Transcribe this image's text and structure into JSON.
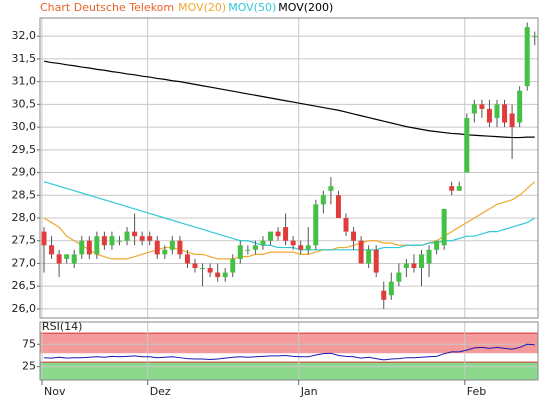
{
  "chart_data": [
    {
      "type": "candlestick",
      "title": "Chart Deutsche Telekom",
      "categories": [
        "Nov",
        null,
        null,
        null,
        null,
        null,
        null,
        null,
        null,
        null,
        null,
        null,
        null,
        null,
        "Dez",
        null,
        null,
        null,
        null,
        null,
        null,
        null,
        null,
        null,
        null,
        null,
        null,
        null,
        null,
        null,
        null,
        null,
        null,
        null,
        "Jan",
        null,
        null,
        null,
        null,
        null,
        null,
        null,
        null,
        null,
        null,
        null,
        null,
        null,
        null,
        null,
        null,
        null,
        null,
        null,
        null,
        null,
        "Feb",
        null,
        null,
        null,
        null,
        null,
        null,
        null,
        null,
        null
      ],
      "open": [
        27.7,
        27.4,
        27.2,
        27.1,
        27.0,
        27.2,
        27.5,
        27.2,
        27.6,
        27.4,
        27.5,
        27.5,
        27.7,
        27.6,
        27.6,
        27.5,
        27.2,
        27.3,
        27.5,
        27.2,
        27.0,
        26.9,
        26.9,
        26.8,
        26.7,
        26.8,
        27.1,
        27.3,
        27.3,
        27.4,
        27.5,
        27.7,
        27.8,
        27.5,
        27.4,
        27.3,
        27.4,
        28.3,
        28.6,
        28.5,
        28.0,
        27.7,
        27.5,
        27.0,
        27.3,
        26.4,
        26.3,
        26.6,
        26.9,
        27.0,
        26.9,
        27.0,
        27.3,
        27.4,
        28.7,
        28.6,
        29.0,
        30.3,
        30.5,
        30.4,
        30.2,
        30.5,
        30.3,
        30.1,
        30.9,
        32.0
      ],
      "high": [
        27.8,
        27.6,
        27.3,
        27.2,
        27.3,
        27.6,
        27.6,
        27.7,
        27.7,
        27.7,
        27.6,
        27.8,
        28.1,
        27.7,
        27.7,
        27.6,
        27.4,
        27.6,
        27.6,
        27.3,
        27.1,
        27.0,
        27.0,
        27.0,
        26.9,
        27.2,
        27.5,
        27.4,
        27.5,
        27.6,
        27.7,
        27.8,
        28.1,
        27.6,
        27.5,
        27.8,
        28.4,
        28.6,
        28.9,
        28.6,
        28.1,
        27.8,
        27.6,
        27.4,
        27.4,
        26.6,
        26.8,
        27.0,
        27.1,
        27.2,
        27.3,
        27.4,
        27.5,
        28.2,
        28.8,
        28.8,
        30.3,
        30.6,
        30.6,
        30.6,
        30.6,
        30.6,
        30.5,
        30.9,
        32.3,
        32.1
      ],
      "low": [
        26.8,
        27.1,
        26.7,
        27.0,
        26.9,
        27.1,
        27.1,
        27.1,
        27.3,
        27.3,
        27.4,
        27.4,
        27.4,
        27.4,
        27.4,
        27.1,
        27.1,
        27.2,
        27.1,
        26.9,
        26.8,
        26.5,
        26.7,
        26.6,
        26.6,
        26.7,
        27.0,
        27.2,
        27.2,
        27.3,
        27.4,
        27.5,
        27.4,
        27.3,
        27.2,
        27.2,
        27.3,
        28.1,
        28.3,
        28.0,
        27.6,
        27.3,
        27.0,
        26.9,
        26.7,
        26.0,
        26.2,
        26.5,
        26.7,
        26.8,
        26.5,
        26.7,
        27.2,
        27.3,
        28.5,
        28.6,
        29.0,
        30.1,
        30.2,
        30.0,
        30.0,
        30.0,
        29.3,
        30.0,
        30.8,
        31.8
      ],
      "close": [
        27.4,
        27.2,
        27.0,
        27.2,
        27.2,
        27.5,
        27.2,
        27.6,
        27.4,
        27.6,
        27.5,
        27.7,
        27.6,
        27.5,
        27.5,
        27.2,
        27.3,
        27.5,
        27.2,
        27.0,
        26.9,
        26.9,
        26.8,
        26.7,
        26.8,
        27.1,
        27.4,
        27.3,
        27.4,
        27.5,
        27.7,
        27.6,
        27.5,
        27.4,
        27.3,
        27.4,
        28.3,
        28.5,
        28.7,
        28.0,
        27.7,
        27.5,
        27.0,
        27.3,
        26.8,
        26.2,
        26.6,
        26.8,
        27.0,
        26.9,
        27.2,
        27.3,
        27.5,
        28.2,
        28.6,
        28.7,
        30.2,
        30.5,
        30.4,
        30.1,
        30.5,
        30.1,
        30.0,
        30.8,
        32.2,
        32.0
      ],
      "up_color": "#44c044",
      "down_color": "#e03c3c",
      "series": [
        {
          "name": "MOV(20)",
          "color": "#f0a830",
          "values": [
            28.0,
            27.9,
            27.8,
            27.6,
            27.5,
            27.4,
            27.3,
            27.2,
            27.15,
            27.1,
            27.1,
            27.1,
            27.15,
            27.2,
            27.25,
            27.3,
            27.35,
            27.35,
            27.3,
            27.25,
            27.2,
            27.2,
            27.15,
            27.1,
            27.1,
            27.1,
            27.15,
            27.15,
            27.2,
            27.2,
            27.25,
            27.25,
            27.25,
            27.25,
            27.2,
            27.2,
            27.25,
            27.3,
            27.3,
            27.35,
            27.35,
            27.4,
            27.45,
            27.5,
            27.5,
            27.45,
            27.45,
            27.4,
            27.4,
            27.4,
            27.4,
            27.45,
            27.5,
            27.6,
            27.7,
            27.8,
            27.9,
            28.0,
            28.1,
            28.2,
            28.3,
            28.35,
            28.4,
            28.5,
            28.65,
            28.8
          ]
        },
        {
          "name": "MOV(50)",
          "color": "#30c8d8",
          "values": [
            28.8,
            28.75,
            28.7,
            28.65,
            28.6,
            28.55,
            28.5,
            28.45,
            28.4,
            28.35,
            28.3,
            28.25,
            28.2,
            28.15,
            28.1,
            28.05,
            28.0,
            27.95,
            27.9,
            27.85,
            27.8,
            27.75,
            27.7,
            27.65,
            27.6,
            27.55,
            27.5,
            27.5,
            27.45,
            27.4,
            27.4,
            27.35,
            27.35,
            27.35,
            27.3,
            27.3,
            27.3,
            27.3,
            27.3,
            27.3,
            27.3,
            27.3,
            27.3,
            27.3,
            27.3,
            27.35,
            27.35,
            27.35,
            27.4,
            27.4,
            27.4,
            27.45,
            27.45,
            27.5,
            27.5,
            27.55,
            27.6,
            27.6,
            27.65,
            27.7,
            27.7,
            27.75,
            27.8,
            27.85,
            27.9,
            28.0
          ]
        },
        {
          "name": "MOV(200)",
          "color": "#000000",
          "values": [
            31.45,
            31.42,
            31.4,
            31.37,
            31.35,
            31.32,
            31.3,
            31.27,
            31.25,
            31.22,
            31.2,
            31.17,
            31.15,
            31.12,
            31.1,
            31.07,
            31.05,
            31.02,
            31.0,
            30.97,
            30.94,
            30.91,
            30.88,
            30.85,
            30.82,
            30.79,
            30.76,
            30.73,
            30.7,
            30.67,
            30.64,
            30.61,
            30.58,
            30.55,
            30.52,
            30.49,
            30.46,
            30.43,
            30.4,
            30.37,
            30.33,
            30.29,
            30.25,
            30.21,
            30.17,
            30.13,
            30.09,
            30.05,
            30.01,
            29.98,
            29.95,
            29.92,
            29.9,
            29.88,
            29.86,
            29.85,
            29.83,
            29.82,
            29.81,
            29.8,
            29.79,
            29.78,
            29.77,
            29.77,
            29.78,
            29.78
          ]
        }
      ],
      "ylim": [
        25.8,
        32.4
      ],
      "yticks": [
        {
          "value": 26,
          "label": "26,0"
        },
        {
          "value": 26.5,
          "label": "26,5"
        },
        {
          "value": 27,
          "label": "27,0"
        },
        {
          "value": 27.5,
          "label": "27,5"
        },
        {
          "value": 28,
          "label": "28,0"
        },
        {
          "value": 28.5,
          "label": "28,5"
        },
        {
          "value": 29,
          "label": "29,0"
        },
        {
          "value": 29.5,
          "label": "29,5"
        },
        {
          "value": 30,
          "label": "30,0"
        },
        {
          "value": 30.5,
          "label": "30,5"
        },
        {
          "value": 31,
          "label": "31,0"
        },
        {
          "value": 31.5,
          "label": "31,5"
        },
        {
          "value": 32,
          "label": "32,0"
        }
      ],
      "grid": true
    },
    {
      "type": "line",
      "title": "RSI(14)",
      "color": "#1a1ab0",
      "values": [
        45,
        44,
        46,
        44,
        45,
        45,
        46,
        47,
        46,
        48,
        47,
        48,
        49,
        47,
        47,
        45,
        46,
        47,
        45,
        43,
        42,
        42,
        41,
        42,
        44,
        46,
        47,
        46,
        47,
        48,
        49,
        49,
        50,
        48,
        47,
        47,
        51,
        54,
        55,
        50,
        48,
        47,
        44,
        46,
        43,
        40,
        42,
        43,
        45,
        45,
        46,
        47,
        48,
        54,
        58,
        58,
        62,
        67,
        68,
        66,
        68,
        66,
        64,
        68,
        75,
        74
      ],
      "ylim": [
        -5,
        125
      ],
      "yticks": [
        25,
        75
      ],
      "zones": [
        {
          "range": [
            55,
            100
          ],
          "color": "#f49a9a"
        },
        {
          "range": [
            -5,
            35
          ],
          "color": "#8cd88c"
        }
      ],
      "grid": true
    }
  ]
}
